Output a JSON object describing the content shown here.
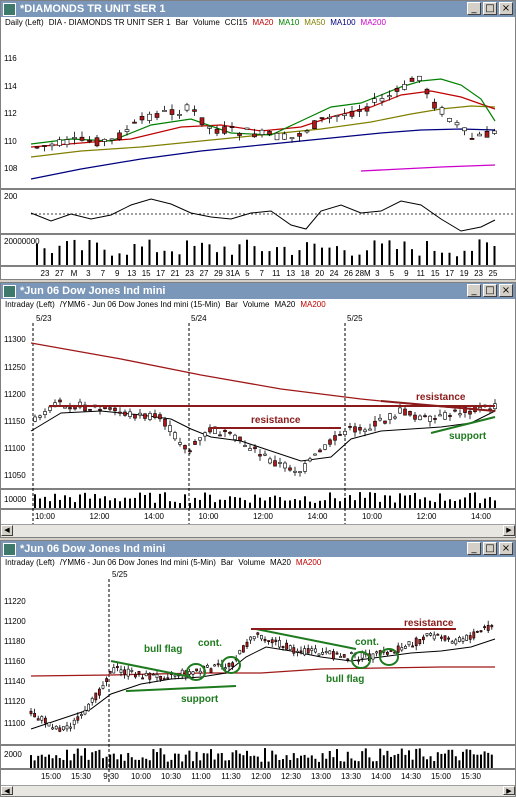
{
  "panes": [
    {
      "title": "*DIAMONDS TR UNIT SER 1",
      "legend": [
        {
          "text": "Daily  (Left)",
          "color": "#000000"
        },
        {
          "text": "DIA - DIAMONDS TR UNIT SER 1",
          "color": "#000000"
        },
        {
          "text": "Bar",
          "color": "#000000"
        },
        {
          "text": "Volume",
          "color": "#000000"
        },
        {
          "text": "CCI15",
          "color": "#000000"
        },
        {
          "text": "MA20",
          "color": "#c00000"
        },
        {
          "text": "MA10",
          "color": "#008000"
        },
        {
          "text": "MA50",
          "color": "#808000"
        },
        {
          "text": "MA100",
          "color": "#000080"
        },
        {
          "text": "MA200",
          "color": "#cc00cc"
        }
      ],
      "y_ticks": [
        "116",
        "114",
        "112",
        "110",
        "108"
      ],
      "cci_tick": "200",
      "vol_tick": "20000000",
      "x_ticks": [
        "23",
        "27",
        "M",
        "3",
        "7",
        "9",
        "13",
        "15",
        "17",
        "21",
        "23",
        "27",
        "29",
        "31A",
        "5",
        "7",
        "11",
        "13",
        "18",
        "20",
        "24",
        "26",
        "28M",
        "3",
        "5",
        "9",
        "11",
        "15",
        "17",
        "19",
        "23",
        "25"
      ]
    },
    {
      "title": "*Jun 06  Dow Jones Ind mini",
      "legend": [
        {
          "text": "Intraday  (Left)",
          "color": "#000000"
        },
        {
          "text": "/YMM6 - Jun 06  Dow Jones Ind mini  (15-Min)",
          "color": "#000000"
        },
        {
          "text": "Bar",
          "color": "#000000"
        },
        {
          "text": "Volume",
          "color": "#000000"
        },
        {
          "text": "MA20",
          "color": "#000000"
        },
        {
          "text": "MA200",
          "color": "#c00000"
        }
      ],
      "dates": [
        "5/23",
        "5/24",
        "5/25"
      ],
      "y_ticks": [
        "11300",
        "11250",
        "11200",
        "11150",
        "11100",
        "11050"
      ],
      "vol_tick": "10000",
      "x_ticks": [
        "10:00",
        "12:00",
        "14:00",
        "10:00",
        "12:00",
        "14:00",
        "10:00",
        "12:00",
        "14:00"
      ],
      "annotations": {
        "resistance_1": "resistance",
        "resistance_2": "resistance",
        "support": "support"
      }
    },
    {
      "title": "*Jun 06  Dow Jones Ind mini",
      "legend": [
        {
          "text": "Intraday  (Left)",
          "color": "#000000"
        },
        {
          "text": "/YMM6 - Jun 06  Dow Jones Ind mini  (5-Min)",
          "color": "#000000"
        },
        {
          "text": "Bar",
          "color": "#000000"
        },
        {
          "text": "Volume",
          "color": "#000000"
        },
        {
          "text": "MA20",
          "color": "#000000"
        },
        {
          "text": "MA200",
          "color": "#c00000"
        }
      ],
      "dates": [
        "5/25"
      ],
      "y_ticks": [
        "11220",
        "11200",
        "11180",
        "11160",
        "11140",
        "11120",
        "11100"
      ],
      "vol_tick": "2000",
      "x_ticks": [
        "15:00",
        "15:30",
        "9:30",
        "10:00",
        "10:30",
        "11:00",
        "11:30",
        "12:00",
        "12:30",
        "13:00",
        "13:30",
        "14:00",
        "14:30",
        "15:00",
        "15:30"
      ],
      "annotations": {
        "bull_flag_1": "bull flag",
        "cont_1": "cont.",
        "support": "support",
        "resistance": "resistance",
        "cont_2": "cont.",
        "bull_flag_2": "bull flag"
      }
    }
  ],
  "colors": {
    "titlebar": "#7a96b8",
    "resistance": "#8b1a1a",
    "trend_green": "#1e7a1e",
    "ma_red": "#a01818",
    "candle_up": "#ffffff",
    "candle_down": "#b01818"
  }
}
